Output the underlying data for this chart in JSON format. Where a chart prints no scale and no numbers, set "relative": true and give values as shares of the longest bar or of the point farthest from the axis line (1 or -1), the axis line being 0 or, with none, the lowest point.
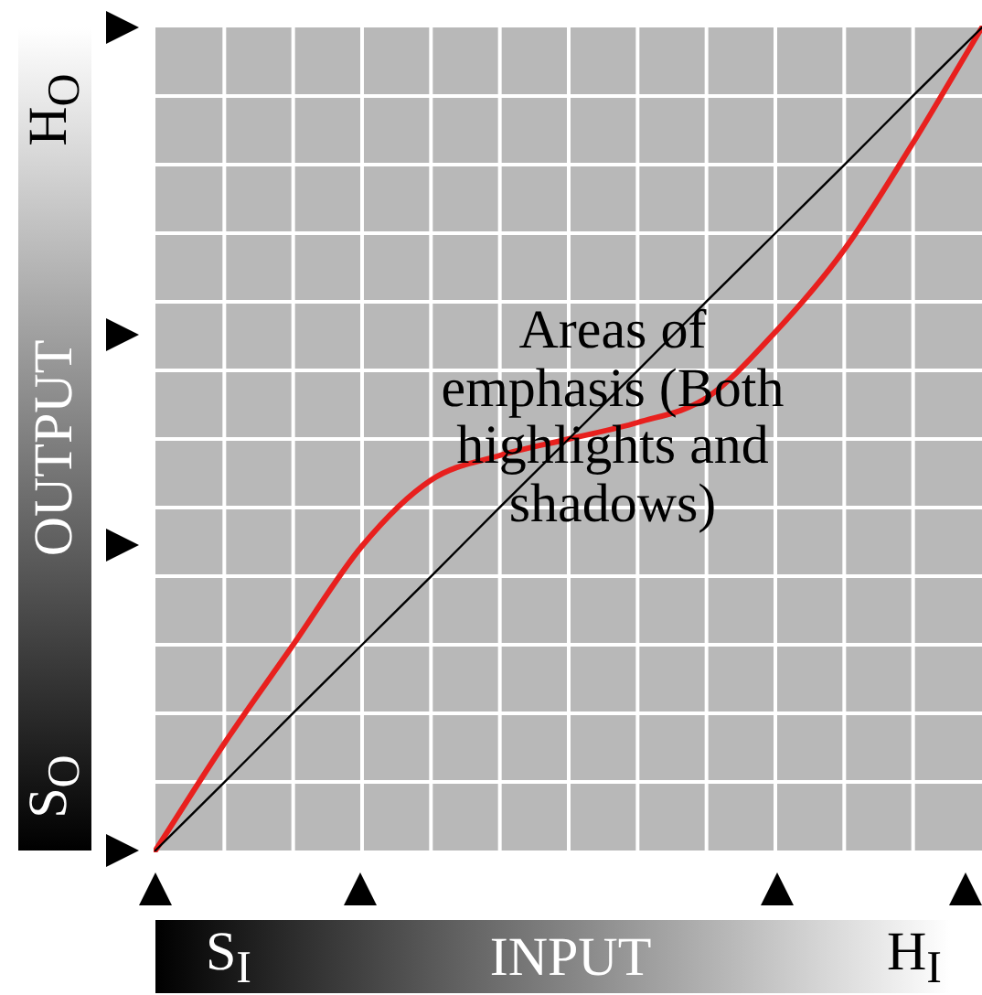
{
  "chart_data": {
    "type": "line",
    "relative": true,
    "grid": true,
    "legend": false,
    "marker": "none",
    "line_style": "solid",
    "xlabel": "INPUT",
    "ylabel": "OUTPUT",
    "categories": [
      null,
      null,
      null,
      null,
      null,
      null,
      null,
      null,
      null,
      null,
      null,
      null,
      null
    ],
    "series": [
      {
        "color": "#000000",
        "values": [
          0,
          0.083,
          0.167,
          0.25,
          0.333,
          0.417,
          0.5,
          0.583,
          0.667,
          0.75,
          0.833,
          0.917,
          1
        ]
      },
      {
        "color": "#e8201e",
        "values": [
          0,
          0.13,
          0.25,
          0.37,
          0.45,
          0.48,
          0.5,
          0.52,
          0.55,
          0.63,
          0.73,
          0.86,
          1
        ]
      }
    ],
    "annotations": [
      "Areas of emphasis (Both highlights and shadows)",
      "S$_{O}$",
      "H$_{O}$",
      "S$_{I}$",
      "H$_{I}$"
    ]
  }
}
